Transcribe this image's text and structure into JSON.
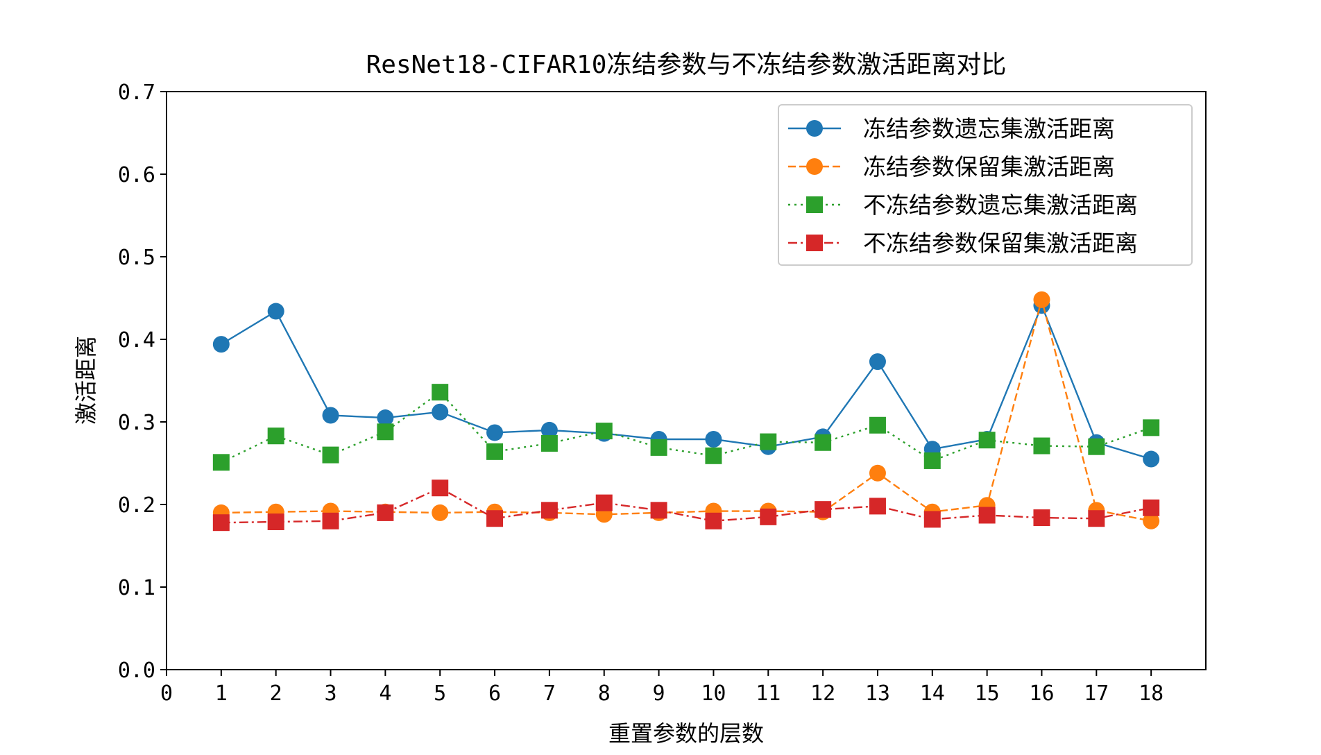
{
  "chart_data": {
    "type": "line",
    "title": "ResNet18-CIFAR10冻结参数与不冻结参数激活距离对比",
    "xlabel": "重置参数的层数",
    "ylabel": "激活距离",
    "xlim": [
      0,
      19
    ],
    "ylim": [
      0.0,
      0.7
    ],
    "x_ticks": [
      0,
      1,
      2,
      3,
      4,
      5,
      6,
      7,
      8,
      9,
      10,
      11,
      12,
      13,
      14,
      15,
      16,
      17,
      18
    ],
    "y_ticks": [
      0.0,
      0.1,
      0.2,
      0.3,
      0.4,
      0.5,
      0.6,
      0.7
    ],
    "y_tick_labels": [
      "0.0",
      "0.1",
      "0.2",
      "0.3",
      "0.4",
      "0.5",
      "0.6",
      "0.7"
    ],
    "grid": false,
    "legend_position": "top-right",
    "x": [
      1,
      2,
      3,
      4,
      5,
      6,
      7,
      8,
      9,
      10,
      11,
      12,
      13,
      14,
      15,
      16,
      17,
      18
    ],
    "series": [
      {
        "name": "冻结参数遗忘集激活距离",
        "color": "#1f77b4",
        "line_style": "solid",
        "marker": "circle",
        "values": [
          0.394,
          0.434,
          0.308,
          0.305,
          0.312,
          0.287,
          0.29,
          0.286,
          0.279,
          0.279,
          0.27,
          0.282,
          0.373,
          0.267,
          0.279,
          0.441,
          0.275,
          0.255
        ]
      },
      {
        "name": "冻结参数保留集激活距离",
        "color": "#ff7f0e",
        "line_style": "dashed",
        "marker": "circle",
        "values": [
          0.19,
          0.191,
          0.192,
          0.191,
          0.19,
          0.191,
          0.19,
          0.188,
          0.19,
          0.192,
          0.192,
          0.191,
          0.238,
          0.191,
          0.199,
          0.448,
          0.193,
          0.18
        ]
      },
      {
        "name": "不冻结参数遗忘集激活距离",
        "color": "#2ca02c",
        "line_style": "dotted",
        "marker": "square",
        "values": [
          0.251,
          0.283,
          0.26,
          0.288,
          0.336,
          0.264,
          0.274,
          0.289,
          0.269,
          0.259,
          0.276,
          0.275,
          0.296,
          0.253,
          0.278,
          0.271,
          0.27,
          0.293
        ]
      },
      {
        "name": "不冻结参数保留集激活距离",
        "color": "#d62728",
        "line_style": "dashdot",
        "marker": "square",
        "values": [
          0.178,
          0.179,
          0.18,
          0.19,
          0.22,
          0.183,
          0.193,
          0.202,
          0.193,
          0.18,
          0.185,
          0.194,
          0.198,
          0.182,
          0.187,
          0.184,
          0.183,
          0.196
        ]
      }
    ]
  }
}
